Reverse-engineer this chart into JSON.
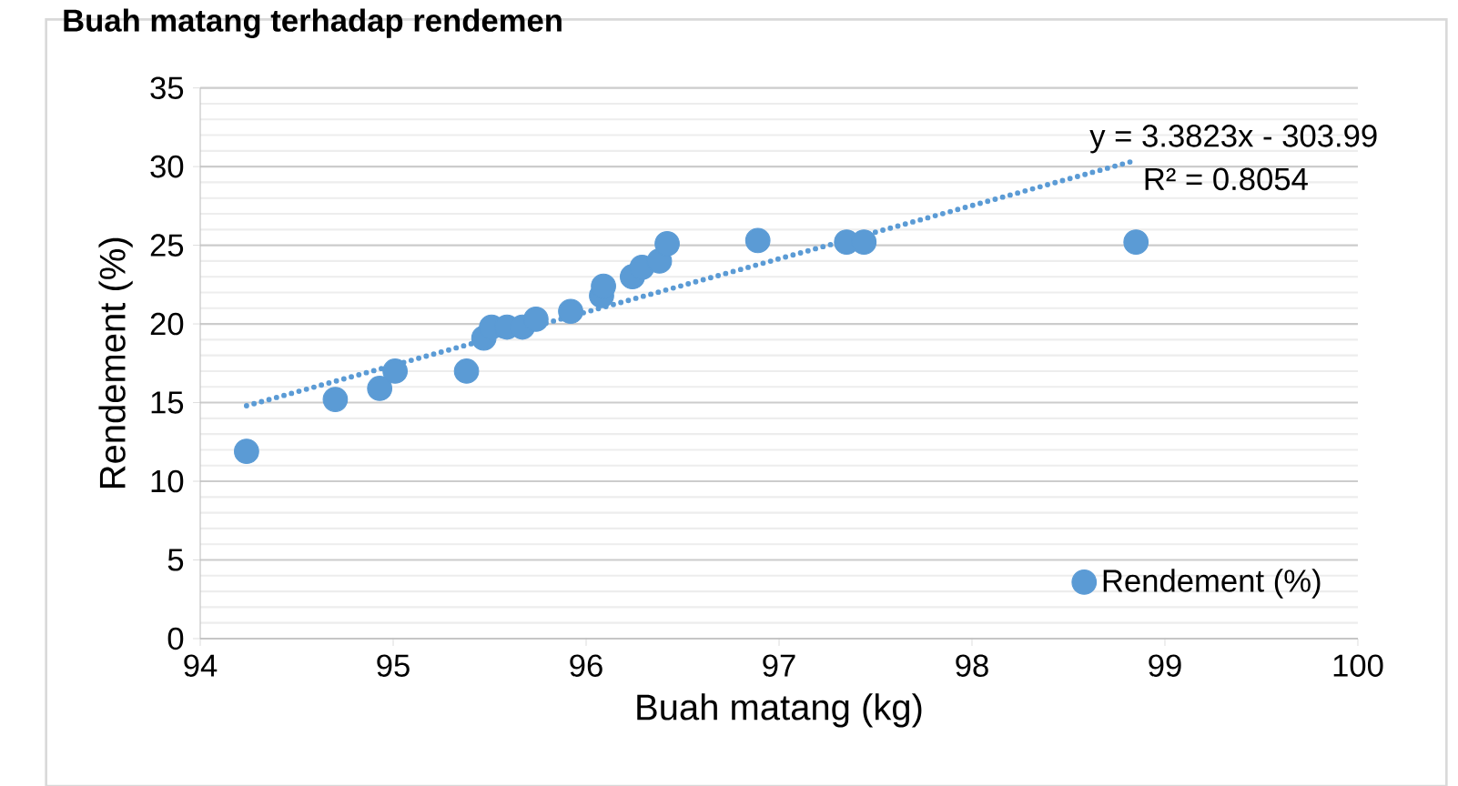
{
  "chart_data": {
    "type": "scatter",
    "title": "Buah matang terhadap rendemen",
    "xlabel": "Buah matang (kg)",
    "ylabel": "Rendement (%)",
    "xlim": [
      94,
      100
    ],
    "xticks": [
      94,
      95,
      96,
      97,
      98,
      99,
      100
    ],
    "ylim": [
      0,
      35
    ],
    "yticks": [
      0,
      5,
      10,
      15,
      20,
      25,
      30,
      35
    ],
    "grid": "y",
    "legend": "bottom right",
    "marker": "circle",
    "annotations": [
      "y = 3.3823x - 303.99",
      "R² = 0.8054"
    ],
    "series": [
      {
        "name": "Rendement (%)",
        "color": "#5b9bd5",
        "x": [
          94.24,
          94.7,
          94.93,
          95.01,
          95.38,
          95.47,
          95.51,
          95.59,
          95.67,
          95.74,
          95.92,
          96.08,
          96.09,
          96.24,
          96.29,
          96.38,
          96.42,
          96.89,
          97.35,
          97.44,
          98.85
        ],
        "values": [
          11.9,
          15.2,
          15.9,
          17.0,
          17.0,
          19.1,
          19.8,
          19.8,
          19.8,
          20.3,
          20.8,
          21.8,
          22.4,
          23.0,
          23.6,
          24.0,
          25.1,
          25.3,
          25.2,
          25.2,
          25.2
        ]
      },
      {
        "type": "line",
        "color": "#5b9bd5",
        "line_style": "dotted",
        "marker": "none",
        "x": [
          94.24,
          98.85
        ],
        "values": [
          14.8,
          30.4
        ]
      }
    ]
  }
}
